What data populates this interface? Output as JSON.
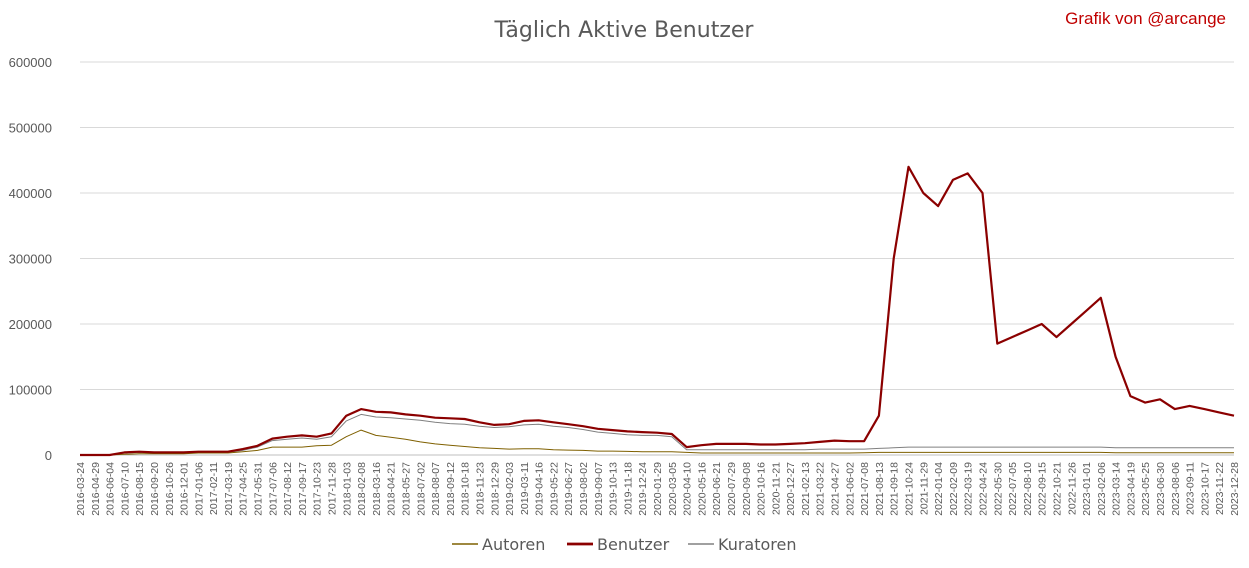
{
  "chart_data": {
    "type": "line",
    "title": "Täglich Aktive Benutzer",
    "credit": "Grafik von @arcange",
    "xlabel": "",
    "ylabel": "",
    "ylim": [
      0,
      600000
    ],
    "y_ticks": [
      "0",
      "100000",
      "200000",
      "300000",
      "400000",
      "500000",
      "600000"
    ],
    "grid": true,
    "legend_position": "bottom",
    "x_tick_labels": [
      "2016-03-24",
      "2016-04-29",
      "2016-06-04",
      "2016-07-10",
      "2016-08-15",
      "2016-09-20",
      "2016-10-26",
      "2016-12-01",
      "2017-01-06",
      "2017-02-11",
      "2017-03-19",
      "2017-04-25",
      "2017-05-31",
      "2017-07-06",
      "2017-08-12",
      "2017-09-17",
      "2017-10-23",
      "2017-11-28",
      "2018-01-03",
      "2018-02-08",
      "2018-03-16",
      "2018-04-21",
      "2018-05-27",
      "2018-07-02",
      "2018-08-07",
      "2018-09-12",
      "2018-10-18",
      "2018-11-23",
      "2018-12-29",
      "2019-02-03",
      "2019-03-11",
      "2019-04-16",
      "2019-05-22",
      "2019-06-27",
      "2019-08-02",
      "2019-09-07",
      "2019-10-13",
      "2019-11-18",
      "2019-12-24",
      "2020-01-29",
      "2020-03-05",
      "2020-04-10",
      "2020-05-16",
      "2020-06-21",
      "2020-07-29",
      "2020-09-08",
      "2020-10-16",
      "2020-11-21",
      "2020-12-27",
      "2021-02-13",
      "2021-03-22",
      "2021-04-27",
      "2021-06-02",
      "2021-07-08",
      "2021-08-13",
      "2021-09-18",
      "2021-10-24",
      "2021-11-29",
      "2022-01-04",
      "2022-02-09",
      "2022-03-19",
      "2022-04-24",
      "2022-05-30",
      "2022-07-05",
      "2022-08-10",
      "2022-09-15",
      "2022-10-21",
      "2022-11-26",
      "2023-01-01",
      "2023-02-06",
      "2023-03-14",
      "2023-04-19",
      "2023-05-25",
      "2023-06-30",
      "2023-08-06",
      "2023-09-11",
      "2023-10-17",
      "2023-11-22",
      "2023-12-28"
    ],
    "series": [
      {
        "name": "Autoren",
        "color": "#7f6000",
        "width": 1,
        "values": [
          0,
          0,
          0,
          1000,
          2000,
          2000,
          2000,
          2000,
          3000,
          3000,
          3000,
          5000,
          7000,
          12000,
          12000,
          12000,
          14000,
          15000,
          28000,
          38000,
          30000,
          27000,
          24000,
          20000,
          17000,
          15000,
          13000,
          11000,
          10000,
          9000,
          9500,
          9500,
          8000,
          7500,
          7000,
          6000,
          6000,
          5500,
          5000,
          5000,
          5000,
          4000,
          3000,
          3000,
          3000,
          3000,
          3000,
          3000,
          3000,
          3000,
          3000,
          3000,
          3000,
          3500,
          4000,
          4000,
          4000,
          4000,
          4000,
          4000,
          4000,
          4000,
          4000,
          4000,
          4000,
          4000,
          4000,
          4000,
          4000,
          4000,
          3500,
          3500,
          3500,
          3500,
          3500,
          3500,
          3500,
          3500,
          3500
        ]
      },
      {
        "name": "Benutzer",
        "color": "#8b0000",
        "width": 2.2,
        "values": [
          0,
          0,
          0,
          4000,
          5000,
          4000,
          4000,
          4000,
          5000,
          5000,
          5000,
          9000,
          14000,
          25000,
          28000,
          30000,
          28000,
          33000,
          60000,
          70000,
          66000,
          65000,
          62000,
          60000,
          57000,
          56000,
          55000,
          50000,
          46000,
          47000,
          52000,
          53000,
          50000,
          47000,
          44000,
          40000,
          38000,
          36000,
          35000,
          34000,
          32000,
          12000,
          15000,
          17000,
          17000,
          17000,
          16000,
          16000,
          17000,
          18000,
          20000,
          22000,
          21000,
          21000,
          60000,
          300000,
          440000,
          400000,
          380000,
          420000,
          430000,
          400000,
          170000,
          180000,
          190000,
          200000,
          180000,
          200000,
          220000,
          240000,
          150000,
          90000,
          80000,
          85000,
          70000,
          75000,
          70000,
          65000,
          60000
        ]
      },
      {
        "name": "Kuratoren",
        "color": "#808080",
        "width": 1,
        "values": [
          0,
          0,
          0,
          3000,
          4000,
          3000,
          3000,
          3000,
          4000,
          4000,
          4000,
          7000,
          12000,
          22000,
          24000,
          26000,
          24000,
          28000,
          52000,
          62000,
          58000,
          57000,
          55000,
          53000,
          50000,
          48000,
          47000,
          44000,
          42000,
          43000,
          46000,
          47000,
          44000,
          42000,
          39000,
          35000,
          33000,
          31000,
          30000,
          30000,
          28000,
          8000,
          8000,
          8000,
          8000,
          8000,
          8000,
          8000,
          8000,
          8000,
          9000,
          9000,
          9000,
          9000,
          10000,
          11000,
          12000,
          12000,
          12000,
          12000,
          12000,
          12000,
          12000,
          12000,
          12000,
          12000,
          12000,
          12000,
          12000,
          12000,
          11000,
          11000,
          11000,
          11000,
          11000,
          11000,
          11000,
          11000,
          11000
        ]
      }
    ]
  }
}
